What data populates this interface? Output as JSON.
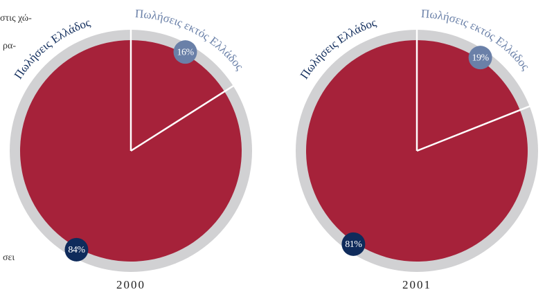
{
  "side_text": [
    "στις χώ-",
    "ρα-",
    "σει"
  ],
  "chart_data": [
    {
      "type": "pie",
      "title": "2000",
      "categories": [
        "Πωλήσεις εκτός Ελλάδος",
        "Πωλήσεις Ελλάδος"
      ],
      "values": [
        16,
        84
      ],
      "value_labels": [
        "16%",
        "84%"
      ],
      "color": "#a6223a",
      "colors": [
        "#6a80a8",
        "#0f2b5b"
      ]
    },
    {
      "type": "pie",
      "title": "2001",
      "categories": [
        "Πωλήσεις εκτός Ελλάδος",
        "Πωλήσεις Ελλάδος"
      ],
      "values": [
        19,
        81
      ],
      "value_labels": [
        "19%",
        "81%"
      ],
      "color": "#a6223a",
      "colors": [
        "#6a80a8",
        "#0f2b5b"
      ]
    }
  ]
}
